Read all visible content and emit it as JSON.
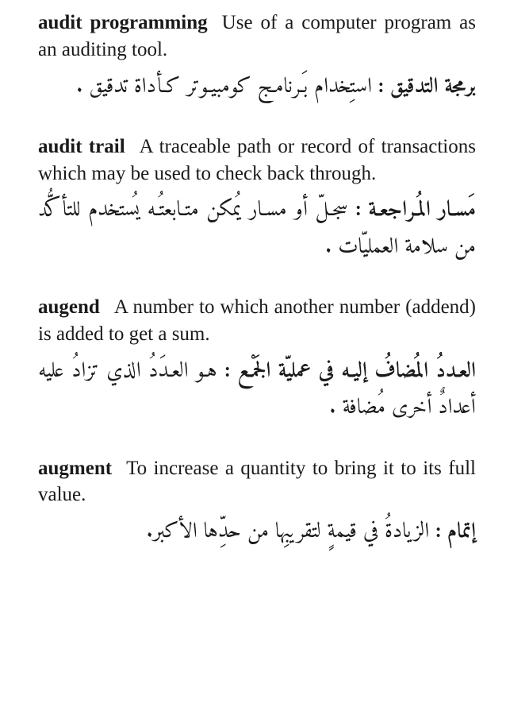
{
  "entries": [
    {
      "term_en": "audit programming",
      "def_en": "Use of a compu­ter program as an auditing tool.",
      "term_ar": "برمجة التدقيق :",
      "def_ar": "استِخدام بَـرنامـج كومبيـوتر كـأداة تدقيق ."
    },
    {
      "term_en": "audit trail",
      "def_en": "A traceable path or record of transactions which may be used to check back through.",
      "term_ar": "مَسـار المُـراجعـة :",
      "def_ar": "سجـلّ أو مسـار يُمكن متـابعتُـه يُستخدم للتأكُّد من سلامة العمليّات ."
    },
    {
      "term_en": "augend",
      "def_en": "A number to which another number (addend) is added to get a sum.",
      "term_ar": "العـددُ المُضافُ إليـه في عمليّة الجَمْـع :",
      "def_ar": "هـو العـدَدُ الذي تزادُ عليه أعدادٌ أخرى مُضافة ."
    },
    {
      "term_en": "augment",
      "def_en": "To increase a quantity to bring it to its full value.",
      "term_ar": "إتمام :",
      "def_ar": "الزيادةُ في قيمةٍ لتقريبِها من حدِّها الأكبر."
    }
  ]
}
